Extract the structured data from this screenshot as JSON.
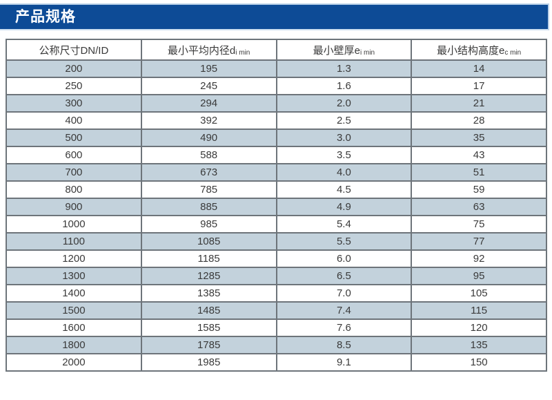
{
  "page": {
    "title": "产品规格"
  },
  "colors": {
    "title_bar_bg": "#0d4b96",
    "title_bar_outline": "#b9d0e8",
    "title_text": "#ffffff",
    "row_stripe": "#c3d2dc",
    "row_plain": "#ffffff",
    "grid_border": "#6d747a",
    "cell_text": "#3a3a3a"
  },
  "table": {
    "headers": [
      {
        "base": "公称尺寸DN/ID",
        "sub": ""
      },
      {
        "base": "最小平均内径d",
        "sub": "i min"
      },
      {
        "base": "最小壁厚e",
        "sub": "i min"
      },
      {
        "base": "最小结构高度e",
        "sub": "c min"
      }
    ],
    "rows": [
      [
        "200",
        "195",
        "1.3",
        "14"
      ],
      [
        "250",
        "245",
        "1.6",
        "17"
      ],
      [
        "300",
        "294",
        "2.0",
        "21"
      ],
      [
        "400",
        "392",
        "2.5",
        "28"
      ],
      [
        "500",
        "490",
        "3.0",
        "35"
      ],
      [
        "600",
        "588",
        "3.5",
        "43"
      ],
      [
        "700",
        "673",
        "4.0",
        "51"
      ],
      [
        "800",
        "785",
        "4.5",
        "59"
      ],
      [
        "900",
        "885",
        "4.9",
        "63"
      ],
      [
        "1000",
        "985",
        "5.4",
        "75"
      ],
      [
        "1100",
        "1085",
        "5.5",
        "77"
      ],
      [
        "1200",
        "1185",
        "6.0",
        "92"
      ],
      [
        "1300",
        "1285",
        "6.5",
        "95"
      ],
      [
        "1400",
        "1385",
        "7.0",
        "105"
      ],
      [
        "1500",
        "1485",
        "7.4",
        "115"
      ],
      [
        "1600",
        "1585",
        "7.6",
        "120"
      ],
      [
        "1800",
        "1785",
        "8.5",
        "135"
      ],
      [
        "2000",
        "1985",
        "9.1",
        "150"
      ]
    ]
  }
}
